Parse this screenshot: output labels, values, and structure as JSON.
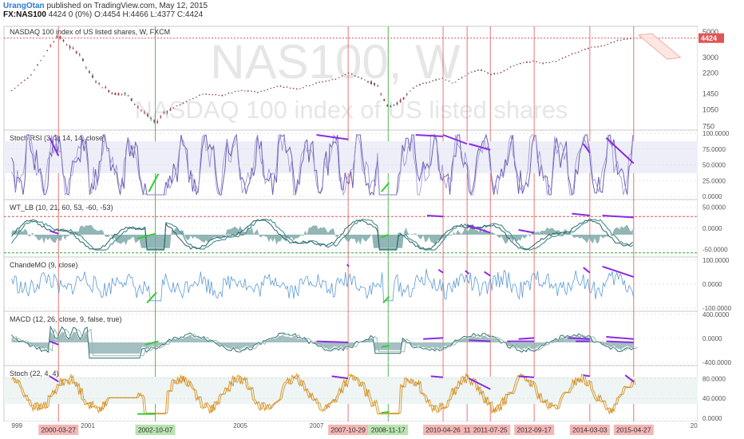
{
  "header": {
    "author": "UrangOtan",
    "published": "published on TradingView.com, May 12, 2015",
    "symbol": "FX:NAS100",
    "last": "4424",
    "change": "0 (0%)",
    "ohlc": "O:4454 H:4466 L:4377 C:4424"
  },
  "watermark": {
    "symbol": "NAS100, W",
    "name": "NASDAQ 100 index of US listed shares"
  },
  "chart_data": [
    {
      "type": "line",
      "title": "NASDAQ 100 index of US listed shares, W, FXCM",
      "scale": "log",
      "last_price_label": "4424",
      "yticks": [
        "5000",
        "3000",
        "2200",
        "1450",
        "1050",
        "750"
      ],
      "x": [
        1999.0,
        1999.5,
        2000.0,
        2000.2,
        2000.5,
        2000.8,
        2001.0,
        2001.3,
        2001.7,
        2002.0,
        2002.4,
        2002.78,
        2003.0,
        2003.5,
        2004.0,
        2004.5,
        2005.0,
        2005.5,
        2006.0,
        2006.5,
        2007.0,
        2007.5,
        2007.83,
        2008.3,
        2008.6,
        2008.88,
        2009.2,
        2009.6,
        2010.0,
        2010.3,
        2010.6,
        2011.0,
        2011.3,
        2011.56,
        2011.8,
        2012.2,
        2012.72,
        2012.9,
        2013.3,
        2013.7,
        2014.17,
        2014.5,
        2014.9,
        2015.2,
        2015.32
      ],
      "values": [
        1550,
        2100,
        3700,
        4700,
        3750,
        3200,
        2300,
        1750,
        1450,
        1450,
        1050,
        800,
        1000,
        1200,
        1450,
        1400,
        1550,
        1500,
        1700,
        1600,
        1800,
        1950,
        2200,
        1900,
        1700,
        1100,
        1250,
        1700,
        1850,
        2000,
        1800,
        2200,
        2350,
        2150,
        2200,
        2600,
        2800,
        2650,
        2800,
        3200,
        3650,
        3800,
        4200,
        4400,
        4424
      ],
      "projection_box": true
    },
    {
      "type": "line",
      "title": "Stoch RSI (3, 3, 14, 14, close)",
      "yticks": [
        "100.0000",
        "75.0000",
        "50.0000",
        "25.0000",
        "0.0000"
      ],
      "ylim": [
        0,
        100
      ]
    },
    {
      "type": "line",
      "title": "WT_LB (10, 21, 60, 53, -60, -53)",
      "yticks": [
        "50.0000",
        "0.0000",
        "-50.0000"
      ],
      "ylim": [
        -70,
        70
      ]
    },
    {
      "type": "line",
      "title": "ChandeMO (9, close)",
      "yticks": [
        "100.0000",
        "0.0000",
        "-100.0000"
      ],
      "ylim": [
        -100,
        100
      ]
    },
    {
      "type": "line",
      "title": "MACD (12, 26, close, 9, false, true)",
      "yticks": [
        "400.0000",
        "0.0000",
        "-400.0000"
      ],
      "ylim": [
        -400,
        400
      ]
    },
    {
      "type": "line",
      "title": "Stoch (22, 4, 4)",
      "yticks": [
        "80.0000",
        "40.0000",
        "0.0000"
      ],
      "ylim": [
        0,
        100
      ]
    }
  ],
  "x_axis": {
    "years": [
      {
        "label": "999",
        "x": 1999.0
      },
      {
        "label": "2001",
        "x": 2001.0
      },
      {
        "label": "2005",
        "x": 2005.0
      },
      {
        "label": "2007",
        "x": 2007.0
      },
      {
        "label": "20",
        "x": 2016.9
      }
    ],
    "markers": [
      {
        "label": "2000-03-27",
        "x": 2000.23,
        "kind": "top"
      },
      {
        "label": "2002-10-07",
        "x": 2002.77,
        "kind": "bottom"
      },
      {
        "label": "2007-10-29",
        "x": 2007.83,
        "kind": "top"
      },
      {
        "label": "2008-11-17",
        "x": 2008.88,
        "kind": "bottom"
      },
      {
        "label": "2010-04-26",
        "x": 2010.32,
        "kind": "top"
      },
      {
        "label": "11",
        "x": 2010.95,
        "kind": "top"
      },
      {
        "label": "2011-07-25",
        "x": 2011.56,
        "kind": "top"
      },
      {
        "label": "2012-09-17",
        "x": 2012.71,
        "kind": "top"
      },
      {
        "label": "2014-03-03",
        "x": 2014.17,
        "kind": "top"
      },
      {
        "label": "2015-04-27",
        "x": 2015.32,
        "kind": "top"
      }
    ],
    "range": [
      1998.8,
      2017.0
    ]
  },
  "colors": {
    "top_marker": "#e05555",
    "bottom_marker": "#2aa82a",
    "divergence_bear": "#8a2be2",
    "divergence_bull": "#33cc33",
    "oscillator": "#6b5fb0",
    "chande": "#5b9bd5",
    "stoch": "#e0a030",
    "wt": "#3f8f8f",
    "candle_up": "#555555",
    "candle_down": "#aa3333"
  }
}
